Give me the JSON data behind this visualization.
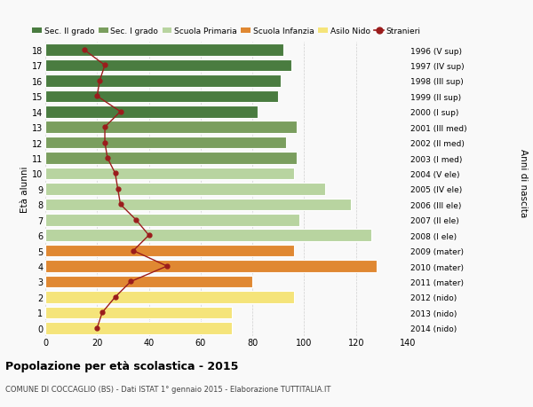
{
  "ages": [
    0,
    1,
    2,
    3,
    4,
    5,
    6,
    7,
    8,
    9,
    10,
    11,
    12,
    13,
    14,
    15,
    16,
    17,
    18
  ],
  "bar_values": [
    72,
    72,
    96,
    80,
    128,
    96,
    126,
    98,
    118,
    108,
    96,
    97,
    93,
    97,
    82,
    90,
    91,
    95,
    92
  ],
  "bar_colors": [
    "#f5e47a",
    "#f5e47a",
    "#f5e47a",
    "#e08832",
    "#e08832",
    "#e08832",
    "#b8d4a0",
    "#b8d4a0",
    "#b8d4a0",
    "#b8d4a0",
    "#b8d4a0",
    "#7a9e5e",
    "#7a9e5e",
    "#7a9e5e",
    "#4a7c40",
    "#4a7c40",
    "#4a7c40",
    "#4a7c40",
    "#4a7c40"
  ],
  "stranieri_values": [
    20,
    22,
    27,
    33,
    47,
    34,
    40,
    35,
    29,
    28,
    27,
    24,
    23,
    23,
    29,
    20,
    21,
    23,
    15
  ],
  "right_labels": [
    "2014 (nido)",
    "2013 (nido)",
    "2012 (nido)",
    "2011 (mater)",
    "2010 (mater)",
    "2009 (mater)",
    "2008 (I ele)",
    "2007 (II ele)",
    "2006 (III ele)",
    "2005 (IV ele)",
    "2004 (V ele)",
    "2003 (I med)",
    "2002 (II med)",
    "2001 (III med)",
    "2000 (I sup)",
    "1999 (II sup)",
    "1998 (III sup)",
    "1997 (IV sup)",
    "1996 (V sup)"
  ],
  "xlim": [
    0,
    140
  ],
  "xticks": [
    0,
    20,
    40,
    60,
    80,
    100,
    120,
    140
  ],
  "ylabel": "Età alunni",
  "ylabel2": "Anni di nascita",
  "title_bold": "Popolazione per età scolastica - 2015",
  "subtitle": "COMUNE DI COCCAGLIO (BS) - Dati ISTAT 1° gennaio 2015 - Elaborazione TUTTITALIA.IT",
  "legend_labels": [
    "Sec. II grado",
    "Sec. I grado",
    "Scuola Primaria",
    "Scuola Infanzia",
    "Asilo Nido",
    "Stranieri"
  ],
  "legend_colors": [
    "#4a7c40",
    "#7a9e5e",
    "#b8d4a0",
    "#e08832",
    "#f5e47a",
    "#9b1c1c"
  ],
  "stranieri_line_color": "#9b1c1c",
  "bg_color": "#f9f9f9",
  "bar_height": 0.78
}
